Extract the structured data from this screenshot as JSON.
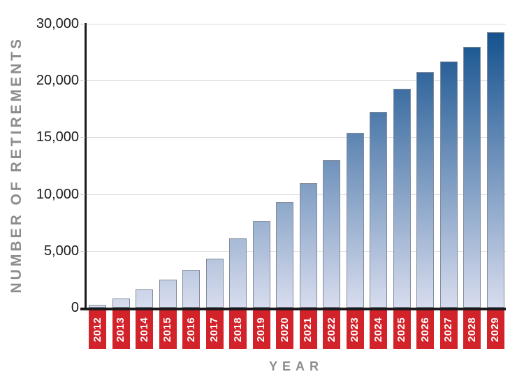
{
  "chart_data": {
    "type": "bar",
    "title": "",
    "xlabel": "YEAR",
    "ylabel": "NUMBER OF RETIREMENTS",
    "categories": [
      "2012",
      "2013",
      "2014",
      "2015",
      "2016",
      "2017",
      "2018",
      "2019",
      "2020",
      "2021",
      "2022",
      "2023",
      "2024",
      "2025",
      "2026",
      "2027",
      "2028",
      "2029"
    ],
    "values": [
      250,
      800,
      1600,
      2450,
      3350,
      4300,
      6100,
      7650,
      9300,
      10950,
      13000,
      15400,
      17250,
      19300,
      21500,
      23400,
      25950,
      28500
    ],
    "y_ticks": [
      0,
      5000,
      10000,
      15000,
      20000,
      30000
    ],
    "y_tick_labels": [
      "0",
      "5,000",
      "10,000",
      "15,000",
      "20,000",
      "30,000"
    ],
    "ylim": [
      0,
      30000
    ],
    "grid": true,
    "legend": "none",
    "axis_note": "y-axis gridlines equally spaced; the 25,000 step between 20,000 and 30,000 is skipped",
    "colors": {
      "background": "#ffffff",
      "bar_gradient_top": "#0e4d8b",
      "bar_gradient_bottom": "#d7dcee",
      "bar_border": "#838a99",
      "gridline": "#d9d9d9",
      "axis_line": "#1c1c1e",
      "year_box_bg": "#d2232a",
      "year_box_text": "#ffffff",
      "axis_title_color": "#8b8d90",
      "tick_label_color": "#1a1a1a"
    }
  }
}
